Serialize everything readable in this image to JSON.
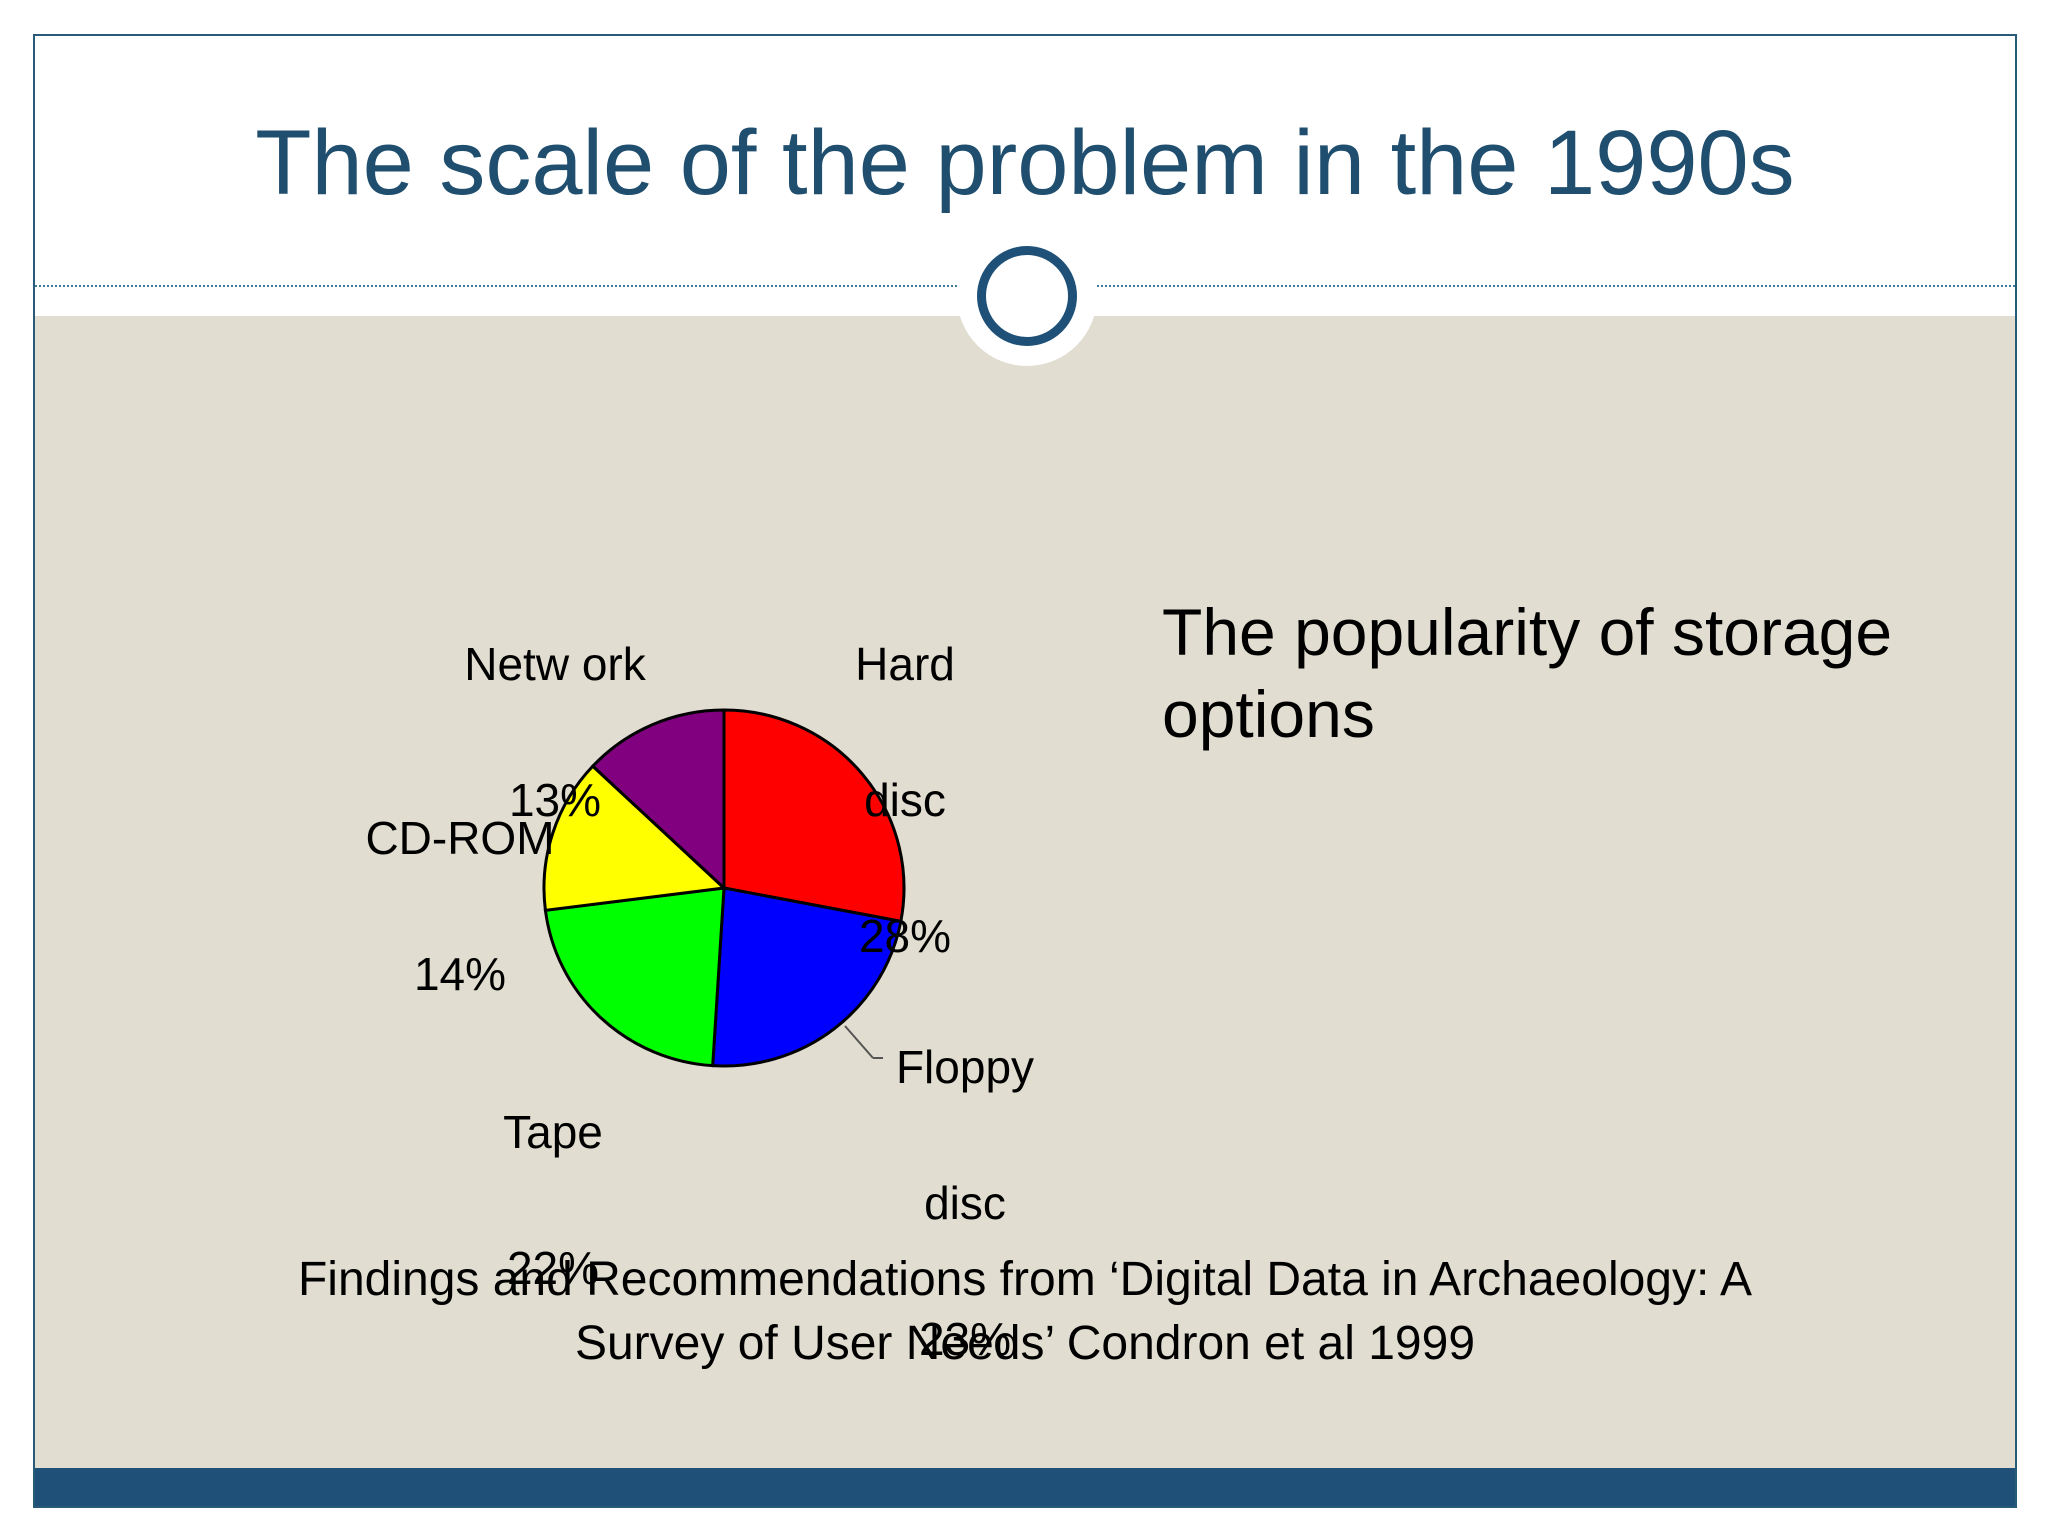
{
  "slide": {
    "title": "The scale of the problem in the 1990s",
    "side_text": "The popularity of storage options",
    "citation_line1": "Findings and  Recommendations from ‘Digital Data in Archaeology: A",
    "citation_line2": "Survey of User Needs’ Condron et al 1999"
  },
  "colors": {
    "title": "#1f4e6e",
    "body_band": "#e1ddd0",
    "footer_band": "#1f5178",
    "ring": "#1f5178"
  },
  "chart_data": {
    "type": "pie",
    "start_angle_deg": 0,
    "direction": "clockwise",
    "slices": [
      {
        "name": "Hard disc",
        "label_line1": "Hard",
        "label_line2": "disc",
        "value": 28,
        "value_label": "28%",
        "color": "#ff0000"
      },
      {
        "name": "Floppy disc",
        "label_line1": "Floppy",
        "label_line2": "disc",
        "value": 23,
        "value_label": "23%",
        "color": "#0000ff"
      },
      {
        "name": "Tape",
        "label_line1": "Tape",
        "label_line2": "",
        "value": 22,
        "value_label": "22%",
        "color": "#00ff00"
      },
      {
        "name": "CD-ROM",
        "label_line1": "CD-ROM",
        "label_line2": "",
        "value": 14,
        "value_label": "14%",
        "color": "#ffff00"
      },
      {
        "name": "Network",
        "label_line1": "Netw ork",
        "label_line2": "",
        "value": 13,
        "value_label": "13%",
        "color": "#800080"
      }
    ]
  }
}
